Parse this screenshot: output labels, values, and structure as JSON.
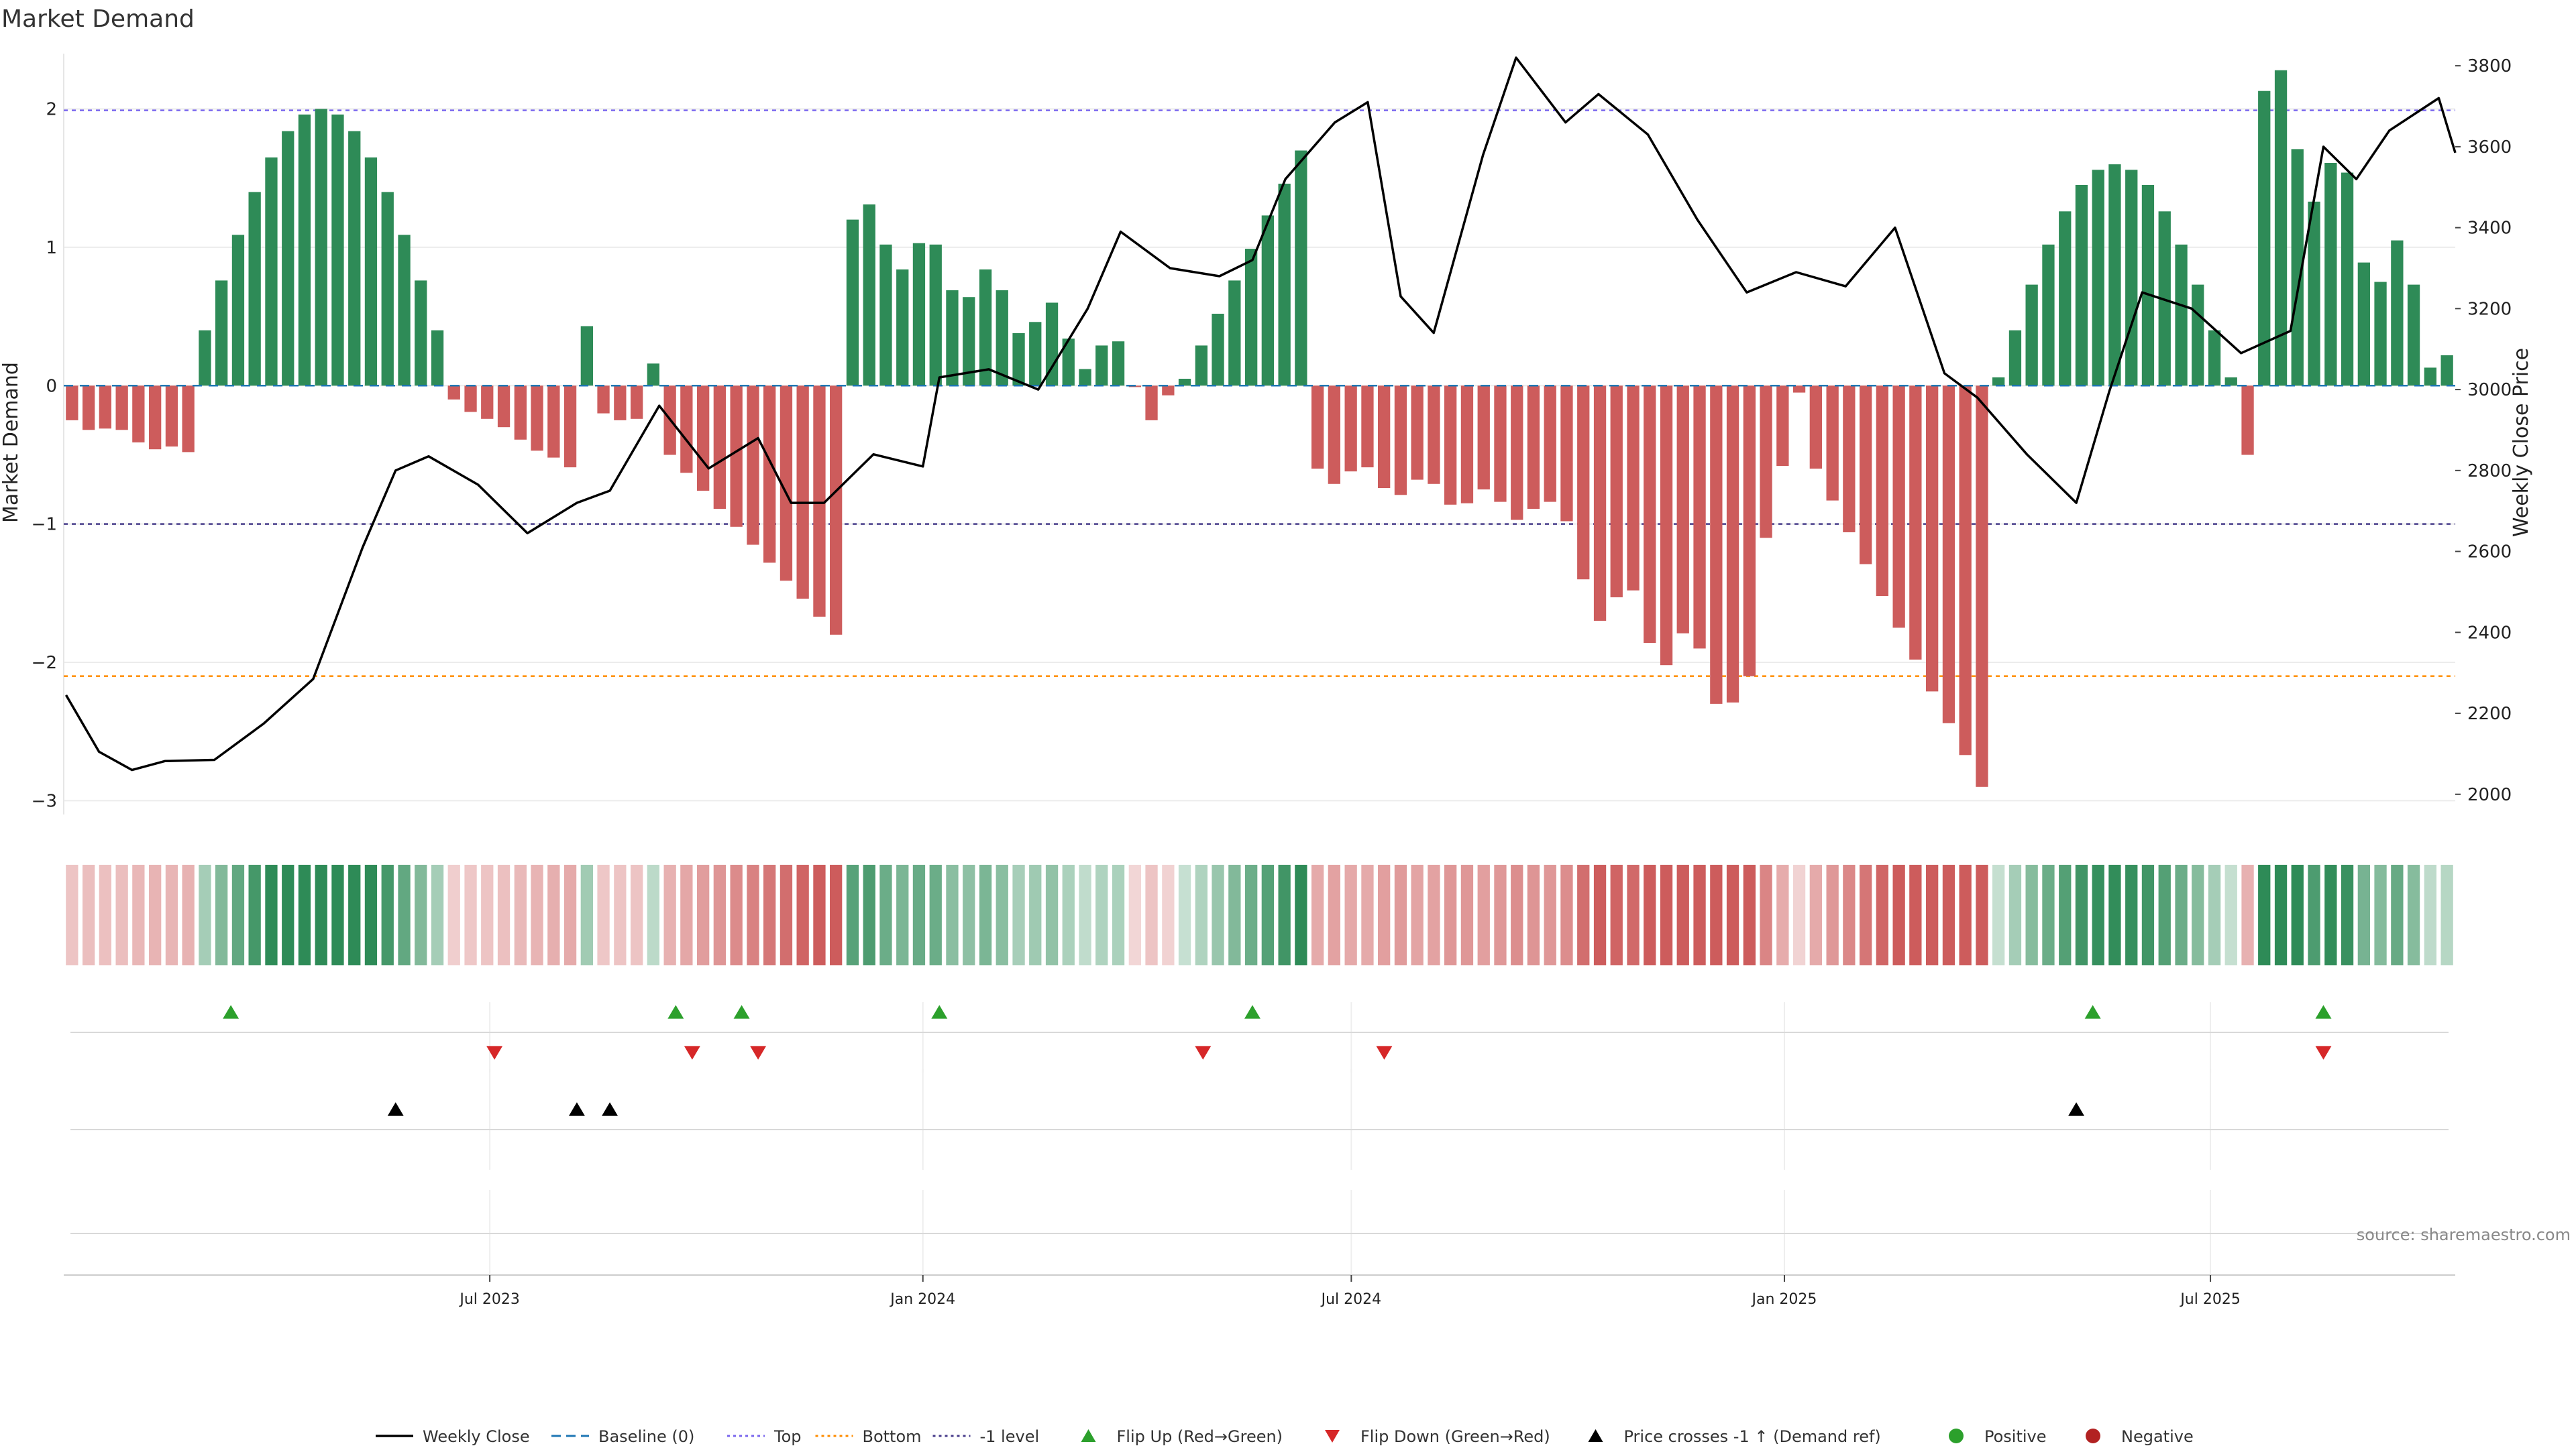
{
  "chart_data": {
    "type": "bar",
    "title": "Market Demand",
    "ylabel_left": "Market Demand",
    "ylabel_right": "Weekly Close Price",
    "left_ylim": [
      -3.1,
      2.4
    ],
    "left_ticks": [
      2,
      1,
      0,
      -1,
      -2,
      -3
    ],
    "left_tick_labels": [
      "2",
      "1",
      "0",
      "−1",
      "−2",
      "−3"
    ],
    "right_ylim": [
      1950,
      3830
    ],
    "right_ticks": [
      3800,
      3600,
      3400,
      3200,
      3000,
      2800,
      2600,
      2400,
      2200,
      2000
    ],
    "reference_lines": {
      "top": 1.99,
      "minus_one": -1.0,
      "bottom": -2.1
    },
    "date_range": [
      "2023-01-01",
      "2025-10-13"
    ],
    "date_ticks": [
      {
        "label": "Jul 2023",
        "date": "2023-07-01"
      },
      {
        "label": "Jan 2024",
        "date": "2024-01-01"
      },
      {
        "label": "Jul 2024",
        "date": "2024-07-01"
      },
      {
        "label": "Jan 2025",
        "date": "2025-01-01"
      },
      {
        "label": "Jul 2025",
        "date": "2025-07-01"
      }
    ],
    "demand_segments": [
      {
        "n": 8,
        "from": -0.25,
        "to": -0.5,
        "shape": "wave"
      },
      {
        "n": 15,
        "from": 0.4,
        "to": 2.0,
        "shape": "hump"
      },
      {
        "n": 8,
        "from": -0.1,
        "to": -0.6,
        "shape": "wave"
      },
      {
        "n": 1,
        "from": 0.43,
        "to": 0.43
      },
      {
        "n": 3,
        "from": -0.2,
        "to": -0.25,
        "shape": "wave"
      },
      {
        "n": 1,
        "from": 0.16,
        "to": 0.16
      },
      {
        "n": 11,
        "from": -0.5,
        "to": -1.8,
        "shape": "ramp"
      },
      {
        "n": 18,
        "from": 1.2,
        "to": 0.1,
        "shape": "wave"
      },
      {
        "n": 2,
        "from": -0.25,
        "to": -0.03,
        "shape": "wave"
      },
      {
        "n": 8,
        "from": 0.05,
        "to": 1.7,
        "shape": "ramp"
      },
      {
        "n": 16,
        "from": -0.6,
        "to": -0.95,
        "shape": "wave"
      },
      {
        "n": 11,
        "from": -1.4,
        "to": -2.3,
        "shape": "wave"
      },
      {
        "n": 3,
        "from": -1.1,
        "to": -0.05,
        "shape": "ramp"
      },
      {
        "n": 11,
        "from": -0.6,
        "to": -2.9,
        "shape": "ramp"
      },
      {
        "n": 15,
        "from": 0.06,
        "to": 1.6,
        "shape": "hump"
      },
      {
        "n": 1,
        "from": -0.5,
        "to": -0.5
      },
      {
        "n": 12,
        "from": 2.13,
        "to": 0.27,
        "shape": "wave"
      }
    ],
    "price_points": [
      [
        "2023-01-02",
        2245
      ],
      [
        "2023-01-16",
        2105
      ],
      [
        "2023-01-30",
        2060
      ],
      [
        "2023-02-13",
        2082
      ],
      [
        "2023-03-06",
        2085
      ],
      [
        "2023-03-27",
        2175
      ],
      [
        "2023-04-17",
        2285
      ],
      [
        "2023-05-08",
        2610
      ],
      [
        "2023-05-22",
        2800
      ],
      [
        "2023-06-05",
        2835
      ],
      [
        "2023-06-26",
        2765
      ],
      [
        "2023-07-17",
        2645
      ],
      [
        "2023-08-07",
        2720
      ],
      [
        "2023-08-21",
        2750
      ],
      [
        "2023-09-11",
        2960
      ],
      [
        "2023-10-02",
        2805
      ],
      [
        "2023-10-23",
        2880
      ],
      [
        "2023-11-06",
        2720
      ],
      [
        "2023-11-20",
        2720
      ],
      [
        "2023-12-11",
        2840
      ],
      [
        "2024-01-01",
        2810
      ],
      [
        "2024-01-08",
        3030
      ],
      [
        "2024-01-29",
        3050
      ],
      [
        "2024-02-19",
        3000
      ],
      [
        "2024-03-11",
        3200
      ],
      [
        "2024-03-25",
        3390
      ],
      [
        "2024-04-15",
        3300
      ],
      [
        "2024-05-06",
        3280
      ],
      [
        "2024-05-20",
        3320
      ],
      [
        "2024-06-03",
        3520
      ],
      [
        "2024-06-24",
        3660
      ],
      [
        "2024-07-08",
        3710
      ],
      [
        "2024-07-22",
        3230
      ],
      [
        "2024-08-05",
        3140
      ],
      [
        "2024-08-26",
        3580
      ],
      [
        "2024-09-09",
        3820
      ],
      [
        "2024-09-30",
        3660
      ],
      [
        "2024-10-14",
        3730
      ],
      [
        "2024-11-04",
        3630
      ],
      [
        "2024-11-25",
        3420
      ],
      [
        "2024-12-16",
        3240
      ],
      [
        "2025-01-06",
        3290
      ],
      [
        "2025-01-27",
        3255
      ],
      [
        "2025-02-17",
        3400
      ],
      [
        "2025-03-10",
        3040
      ],
      [
        "2025-03-24",
        2980
      ],
      [
        "2025-04-14",
        2840
      ],
      [
        "2025-05-05",
        2720
      ],
      [
        "2025-05-19",
        2995
      ],
      [
        "2025-06-02",
        3240
      ],
      [
        "2025-06-23",
        3200
      ],
      [
        "2025-07-14",
        3090
      ],
      [
        "2025-08-04",
        3145
      ],
      [
        "2025-08-18",
        3600
      ],
      [
        "2025-09-01",
        3520
      ],
      [
        "2025-09-15",
        3640
      ],
      [
        "2025-10-06",
        3720
      ],
      [
        "2025-10-13",
        3585
      ]
    ],
    "flip_up_dates": [
      "2023-03-13",
      "2023-09-18",
      "2023-10-16",
      "2024-01-08",
      "2024-05-20",
      "2025-05-12",
      "2025-08-18"
    ],
    "flip_down_dates": [
      "2023-07-03",
      "2023-09-25",
      "2023-10-23",
      "2024-04-29",
      "2024-07-15",
      "2025-08-18"
    ],
    "price_cross_dates": [
      "2023-05-22",
      "2023-08-07",
      "2023-08-21",
      "2025-05-05"
    ],
    "colors": {
      "positive": "#2e8b57",
      "negative": "#cd5c5c",
      "price_line": "#000000",
      "flip_up": "#2ca02c",
      "flip_down": "#d62728",
      "top_line": "#7b68ee",
      "bottom_line": "#ff8c00",
      "minus_one_line": "#483d8b"
    },
    "legend": [
      {
        "label": "Weekly Close",
        "kind": "line",
        "color": "#000000"
      },
      {
        "label": "Baseline (0)",
        "kind": "dashed",
        "color": "#1f77b4"
      },
      {
        "label": "Top",
        "kind": "dotted",
        "color": "#7b68ee"
      },
      {
        "label": "Bottom",
        "kind": "dotted",
        "color": "#ff8c00"
      },
      {
        "label": "-1 level",
        "kind": "dotted",
        "color": "#483d8b"
      },
      {
        "label": "Flip Up (Red→Green)",
        "kind": "tri-up",
        "color": "#2ca02c"
      },
      {
        "label": "Flip Down (Green→Red)",
        "kind": "tri-down",
        "color": "#d62728"
      },
      {
        "label": "Price crosses -1 ↑ (Demand ref)",
        "kind": "tri-up",
        "color": "#000000"
      },
      {
        "label": "Positive",
        "kind": "dot",
        "color": "#2ca02c"
      },
      {
        "label": "Negative",
        "kind": "dot",
        "color": "#b22222"
      }
    ],
    "source": "source: sharemaestro.com"
  }
}
